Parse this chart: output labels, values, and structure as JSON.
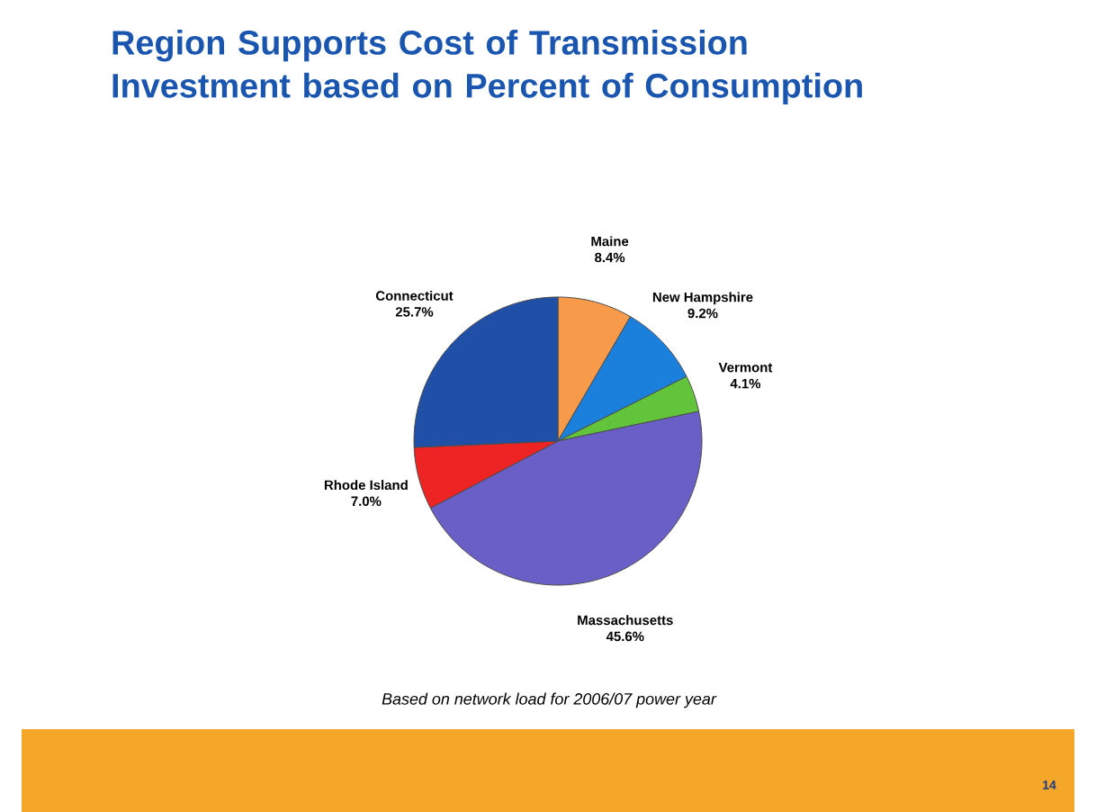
{
  "chart_data": {
    "type": "pie",
    "title": "Region Supports Cost of Transmission Investment based on Percent of Consumption",
    "categories": [
      "Maine",
      "New Hampshire",
      "Vermont",
      "Massachusetts",
      "Rhode Island",
      "Connecticut"
    ],
    "values": [
      8.4,
      9.2,
      4.1,
      45.6,
      7.0,
      25.7
    ],
    "value_labels": [
      "8.4%",
      "9.2%",
      "4.1%",
      "45.6%",
      "7.0%",
      "25.7%"
    ],
    "colors": [
      "#f79a4a",
      "#1a80dc",
      "#62c43a",
      "#6a5fc6",
      "#ee2424",
      "#1f4fa6"
    ],
    "annotations": [
      "Based on network load for 2006/07 power year",
      "14"
    ]
  }
}
